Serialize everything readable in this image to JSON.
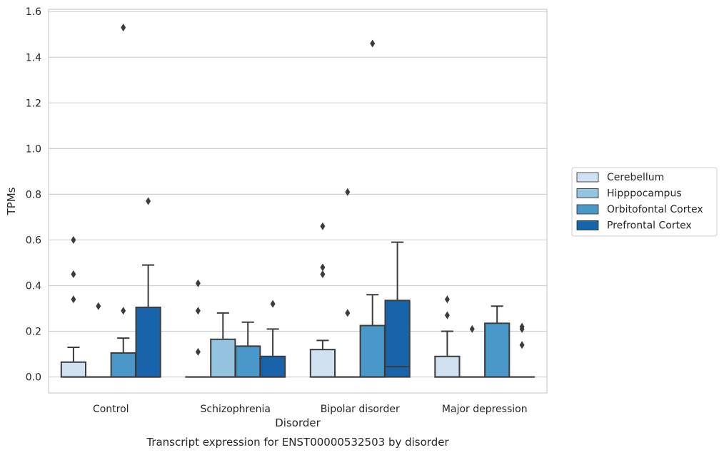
{
  "chart_data": {
    "type": "box",
    "caption": "Transcript expression for ENST00000532503 by disorder",
    "xlabel": "Disorder",
    "ylabel": "TPMs",
    "ylim": [
      -0.07,
      1.61
    ],
    "yticks": [
      0.0,
      0.2,
      0.4,
      0.6,
      0.8,
      1.0,
      1.2,
      1.4,
      1.6
    ],
    "ytick_labels": [
      "0.0",
      "0.2",
      "0.4",
      "0.6",
      "0.8",
      "1.0",
      "1.2",
      "1.4",
      "1.6"
    ],
    "grid": "horizontal",
    "legend_position": "right",
    "categories": [
      "Control",
      "Schizophrenia",
      "Bipolar disorder",
      "Major depression"
    ],
    "series": [
      {
        "name": "Cerebellum",
        "color": "#d0e1f2",
        "boxes": [
          {
            "q1": 0.0,
            "median": 0.0,
            "q3": 0.065,
            "whisker_low": 0.0,
            "whisker_high": 0.13,
            "outliers": [
              0.34,
              0.45,
              0.6
            ]
          },
          {
            "q1": 0.0,
            "median": 0.0,
            "q3": 0.0,
            "whisker_low": 0.0,
            "whisker_high": 0.0,
            "outliers": [
              0.11,
              0.29,
              0.41
            ]
          },
          {
            "q1": 0.0,
            "median": 0.0,
            "q3": 0.12,
            "whisker_low": 0.0,
            "whisker_high": 0.16,
            "outliers": [
              0.45,
              0.48,
              0.66
            ]
          },
          {
            "q1": 0.0,
            "median": 0.0,
            "q3": 0.09,
            "whisker_low": 0.0,
            "whisker_high": 0.2,
            "outliers": [
              0.27,
              0.34
            ]
          }
        ]
      },
      {
        "name": "Hipppocampus",
        "color": "#94c4df",
        "boxes": [
          {
            "q1": 0.0,
            "median": 0.0,
            "q3": 0.0,
            "whisker_low": 0.0,
            "whisker_high": 0.0,
            "outliers": [
              0.31
            ]
          },
          {
            "q1": 0.0,
            "median": 0.0,
            "q3": 0.165,
            "whisker_low": 0.0,
            "whisker_high": 0.28,
            "outliers": []
          },
          {
            "q1": 0.0,
            "median": 0.0,
            "q3": 0.0,
            "whisker_low": 0.0,
            "whisker_high": 0.0,
            "outliers": [
              0.28,
              0.81
            ]
          },
          {
            "q1": 0.0,
            "median": 0.0,
            "q3": 0.0,
            "whisker_low": 0.0,
            "whisker_high": 0.0,
            "outliers": [
              0.21
            ]
          }
        ]
      },
      {
        "name": "Orbitofontal Cortex",
        "color": "#4a98c9",
        "boxes": [
          {
            "q1": 0.0,
            "median": 0.0,
            "q3": 0.105,
            "whisker_low": 0.0,
            "whisker_high": 0.17,
            "outliers": [
              0.29,
              1.53
            ]
          },
          {
            "q1": 0.0,
            "median": 0.0,
            "q3": 0.135,
            "whisker_low": 0.0,
            "whisker_high": 0.24,
            "outliers": []
          },
          {
            "q1": 0.0,
            "median": 0.0,
            "q3": 0.225,
            "whisker_low": 0.0,
            "whisker_high": 0.36,
            "outliers": [
              1.46
            ]
          },
          {
            "q1": 0.0,
            "median": 0.0,
            "q3": 0.235,
            "whisker_low": 0.0,
            "whisker_high": 0.31,
            "outliers": []
          }
        ]
      },
      {
        "name": "Prefrontal Cortex",
        "color": "#1764ab",
        "boxes": [
          {
            "q1": 0.0,
            "median": 0.0,
            "q3": 0.305,
            "whisker_low": 0.0,
            "whisker_high": 0.49,
            "outliers": [
              0.77
            ]
          },
          {
            "q1": 0.0,
            "median": 0.0,
            "q3": 0.09,
            "whisker_low": 0.0,
            "whisker_high": 0.21,
            "outliers": [
              0.32
            ]
          },
          {
            "q1": 0.0,
            "median": 0.045,
            "q3": 0.335,
            "whisker_low": 0.0,
            "whisker_high": 0.59,
            "outliers": []
          },
          {
            "q1": 0.0,
            "median": 0.0,
            "q3": 0.0,
            "whisker_low": 0.0,
            "whisker_high": 0.0,
            "outliers": [
              0.14,
              0.21,
              0.22
            ]
          }
        ]
      }
    ]
  }
}
